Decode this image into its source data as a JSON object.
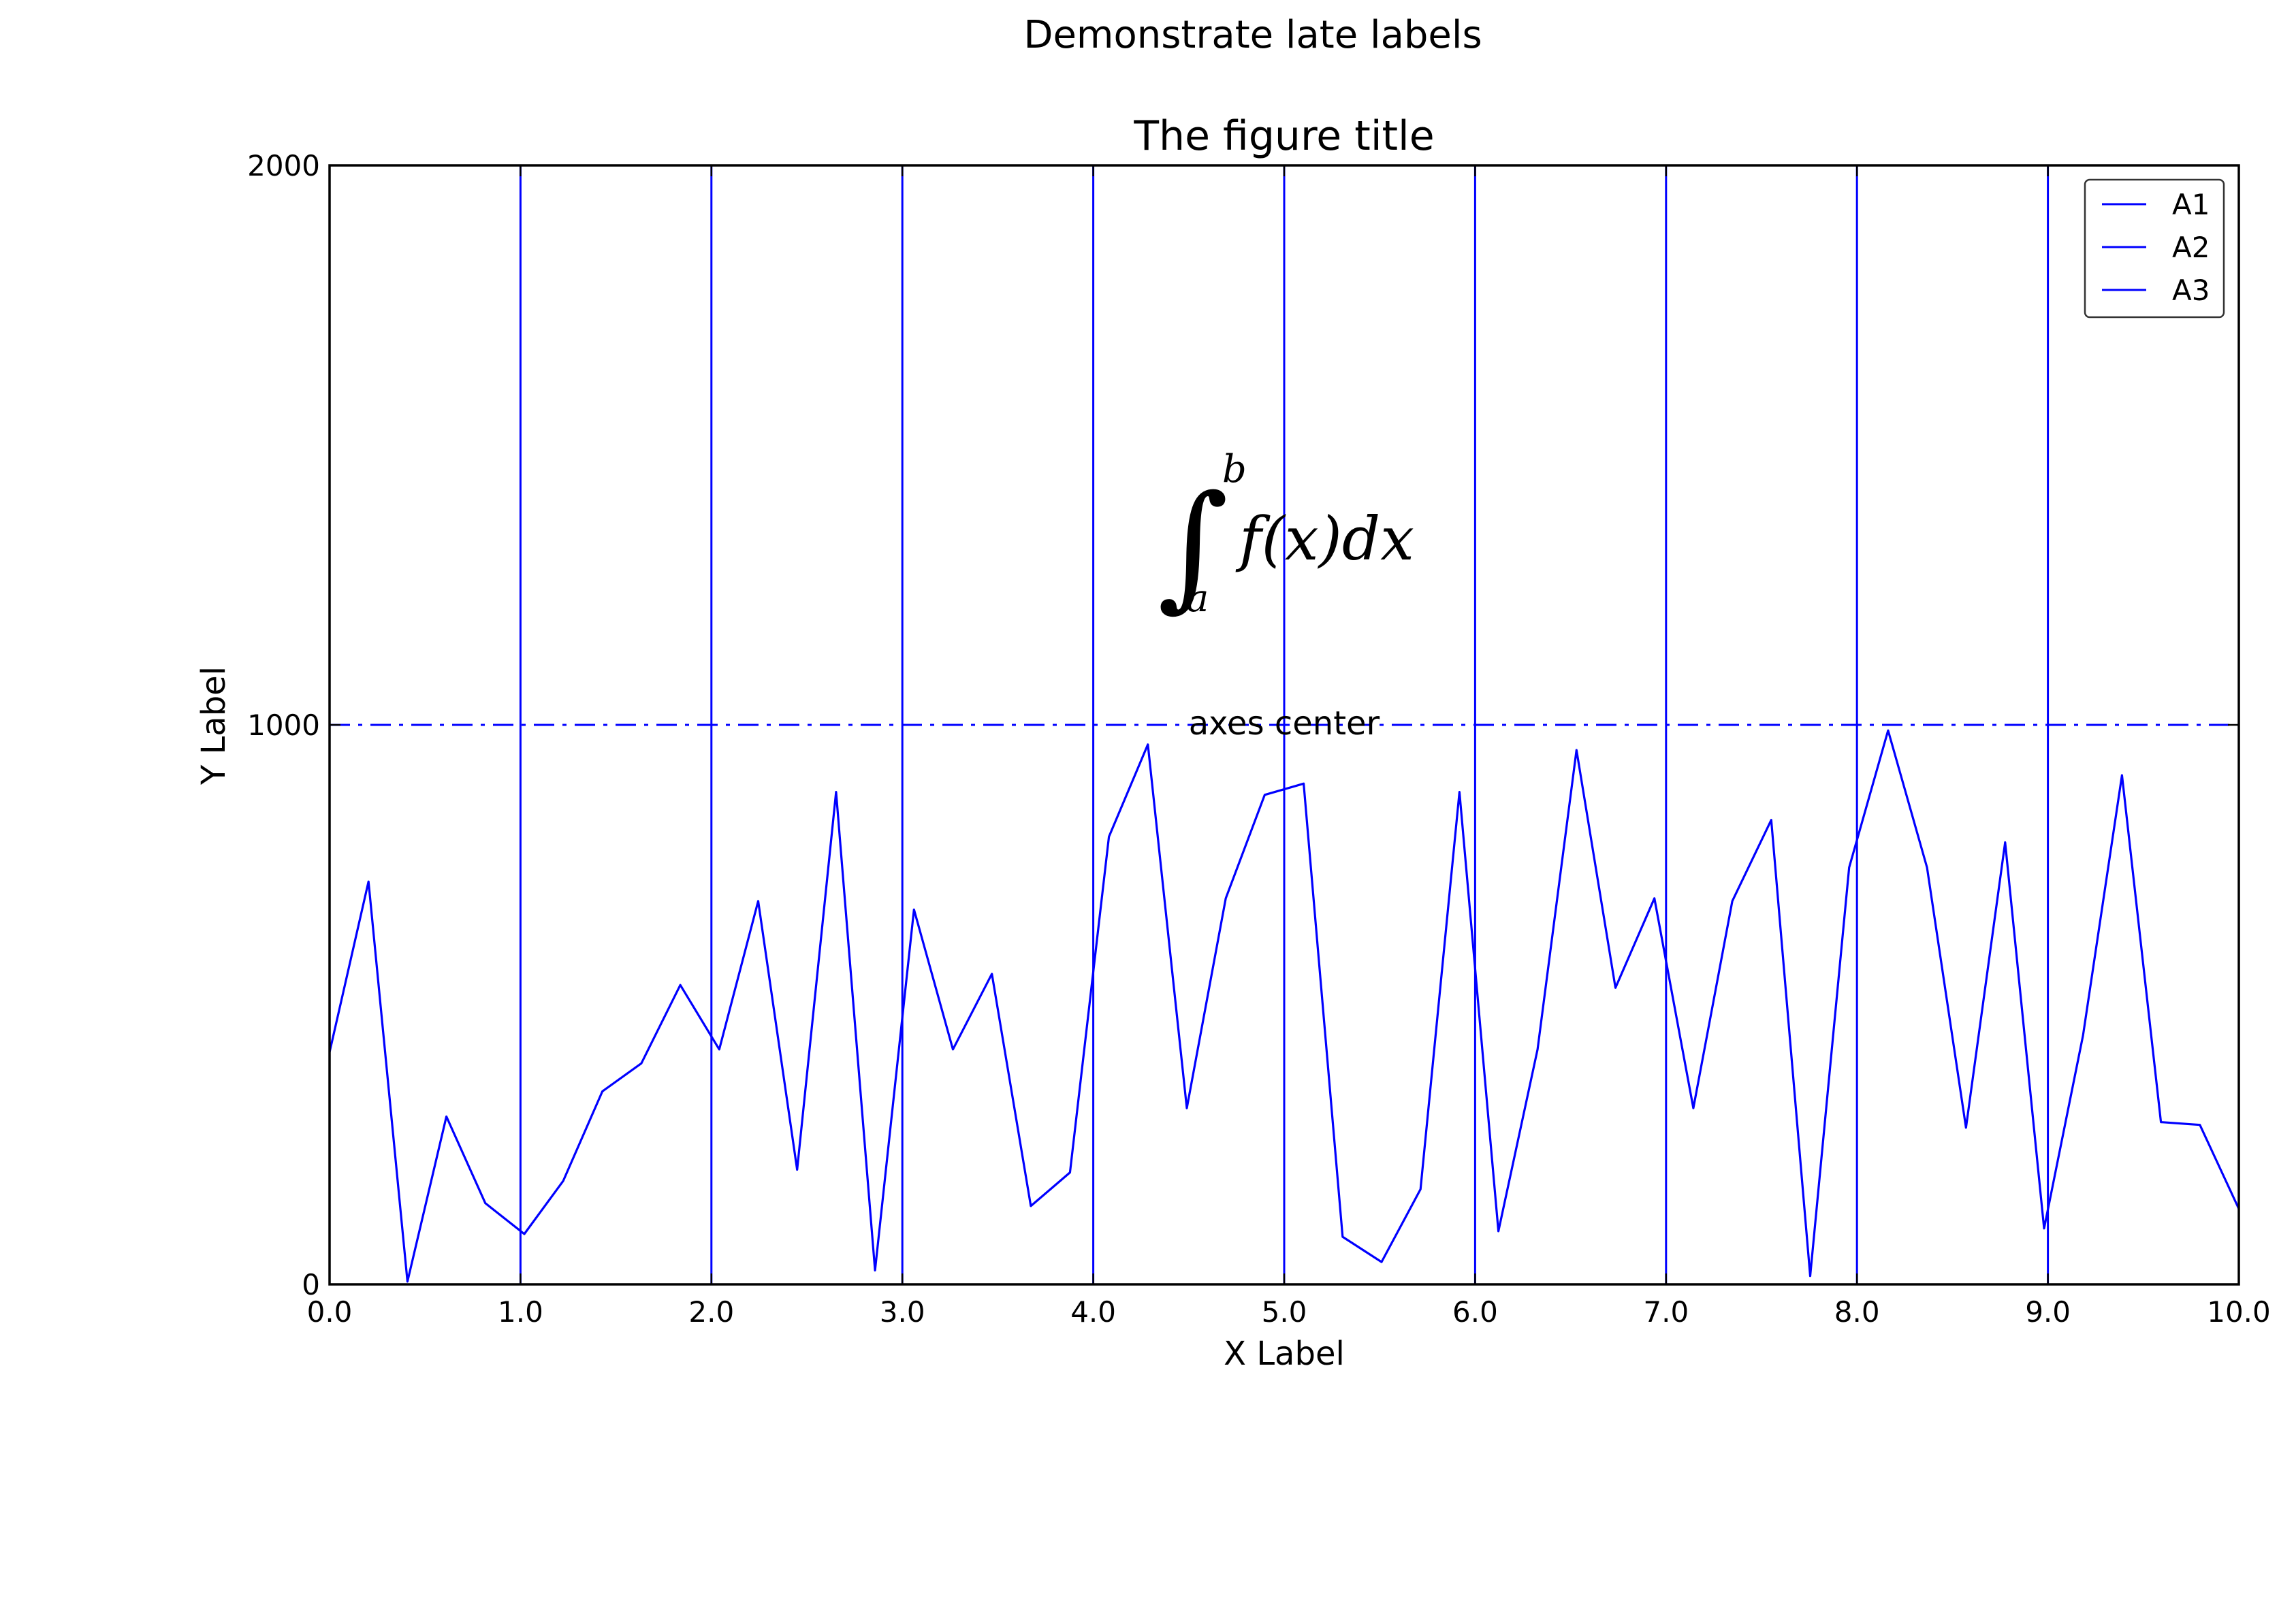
{
  "figure": {
    "suptitle": "Demonstrate late labels"
  },
  "chart_data": {
    "type": "line",
    "title": "The figure title",
    "xlabel": "X Label",
    "ylabel": "Y Label",
    "xlim": [
      0,
      10
    ],
    "ylim": [
      0,
      2000
    ],
    "x_ticks": [
      0,
      1,
      2,
      3,
      4,
      5,
      6,
      7,
      8,
      9,
      10
    ],
    "x_tick_labels": [
      "0.0",
      "1.0",
      "2.0",
      "3.0",
      "4.0",
      "5.0",
      "6.0",
      "7.0",
      "8.0",
      "9.0",
      "10.0"
    ],
    "y_ticks": [
      0,
      1000,
      2000
    ],
    "y_tick_labels": [
      "0",
      "1000",
      "2000"
    ],
    "grid": false,
    "legend": {
      "position": "top-right",
      "entries": [
        "A1",
        "A2",
        "A3"
      ]
    },
    "line_color": "#0000ff",
    "series": [
      {
        "x": [
          0.0,
          0.204,
          0.408,
          0.612,
          0.816,
          1.02,
          1.224,
          1.429,
          1.633,
          1.837,
          2.041,
          2.245,
          2.449,
          2.653,
          2.857,
          3.061,
          3.265,
          3.469,
          3.673,
          3.878,
          4.082,
          4.286,
          4.49,
          4.694,
          4.898,
          5.102,
          5.306,
          5.51,
          5.714,
          5.918,
          6.122,
          6.327,
          6.531,
          6.735,
          6.939,
          7.143,
          7.347,
          7.551,
          7.755,
          7.959,
          8.163,
          8.367,
          8.571,
          8.776,
          8.98,
          9.184,
          9.388,
          9.592,
          9.796,
          10.0
        ],
        "y": [
          415,
          720,
          5,
          300,
          145,
          90,
          185,
          345,
          395,
          535,
          420,
          685,
          205,
          880,
          25,
          670,
          420,
          555,
          140,
          200,
          800,
          965,
          315,
          690,
          875,
          895,
          85,
          40,
          170,
          880,
          95,
          420,
          955,
          530,
          690,
          315,
          685,
          830,
          15,
          745,
          990,
          745,
          280,
          790,
          100,
          445,
          910,
          290,
          285,
          135
        ]
      }
    ],
    "vertical_lines_x": [
      1,
      2,
      3,
      4,
      5,
      6,
      7,
      8,
      9
    ],
    "horizontal_line_y": 1000,
    "annotations": [
      {
        "text": "axes center",
        "x": 5,
        "y": 1000
      },
      {
        "text": "∫ₐᵇ f(x)dx",
        "x": 5,
        "y": 1330
      }
    ]
  }
}
